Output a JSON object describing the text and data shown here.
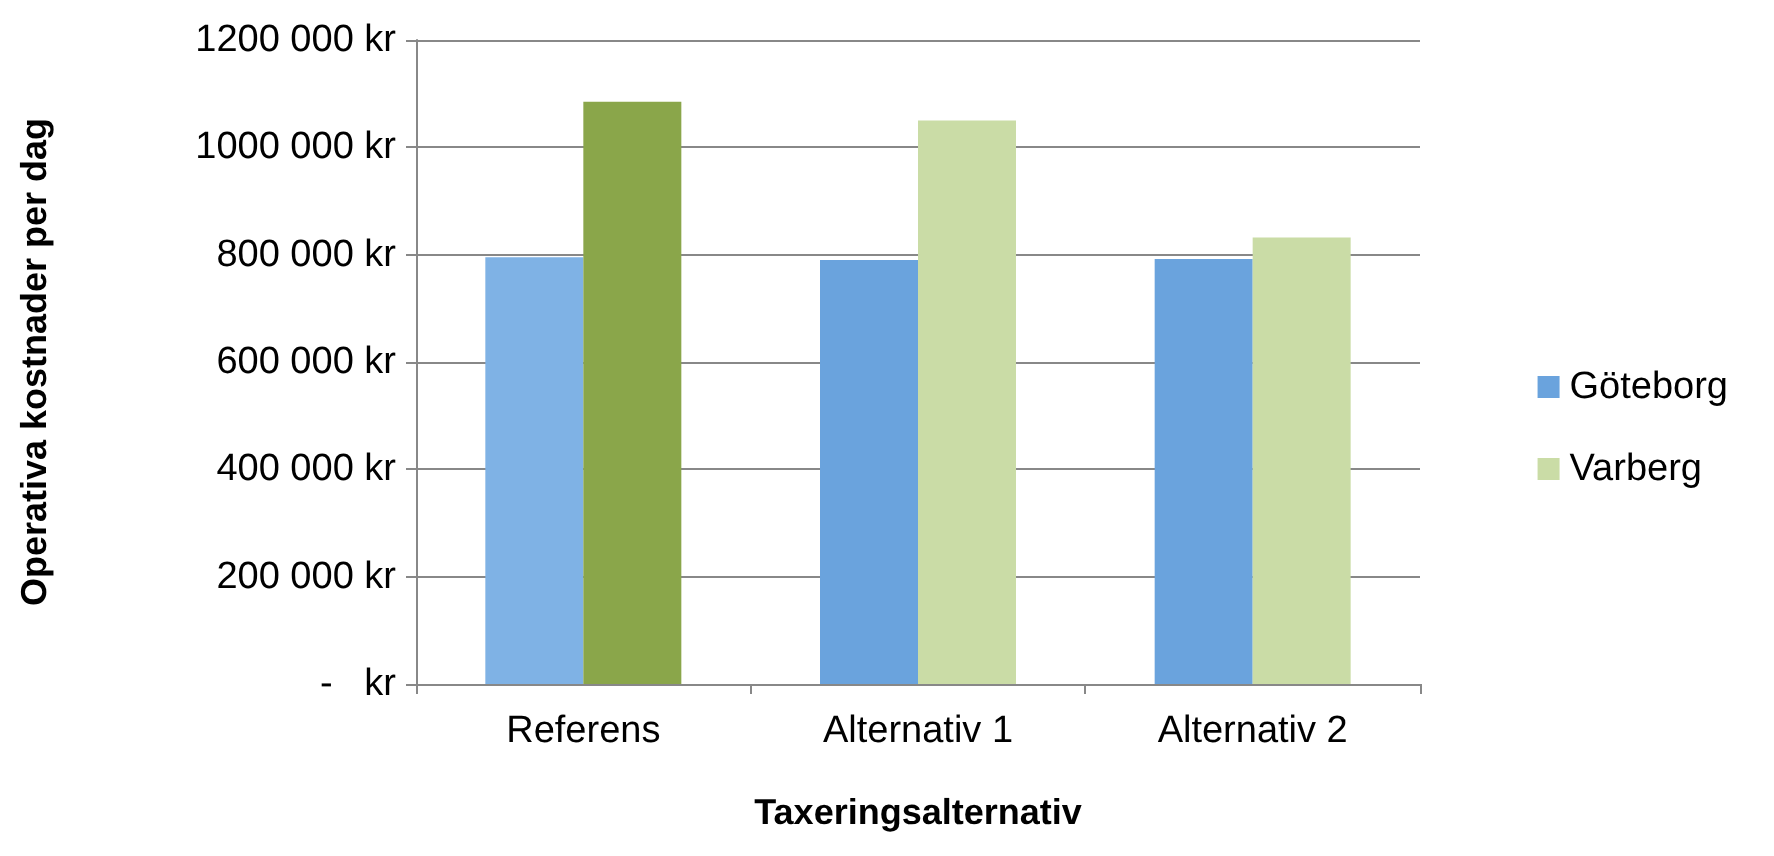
{
  "chart_data": {
    "type": "bar",
    "xlabel": "Taxeringsalternativ",
    "ylabel": "Operativa kostnader per dag",
    "categories": [
      "Referens",
      "Alternativ 1",
      "Alternativ 2"
    ],
    "series": [
      {
        "name": "Göteborg",
        "color": "#6aa3dd",
        "colors": [
          "#7fb2e5",
          "#6aa3dd",
          "#6aa3dd"
        ],
        "values": [
          795000,
          790000,
          792000
        ]
      },
      {
        "name": "Varberg",
        "color": "#cadca6",
        "colors": [
          "#8aa64a",
          "#cadca6",
          "#cadca6"
        ],
        "values": [
          1085000,
          1050000,
          832000
        ]
      }
    ],
    "ylim": [
      0,
      1200000
    ],
    "yticks": [
      {
        "value": 0,
        "label": "-   kr"
      },
      {
        "value": 200000,
        "label": "200 000 kr"
      },
      {
        "value": 400000,
        "label": "400 000 kr"
      },
      {
        "value": 600000,
        "label": "600 000 kr"
      },
      {
        "value": 800000,
        "label": "800 000 kr"
      },
      {
        "value": 1000000,
        "label": "1000 000 kr"
      },
      {
        "value": 1200000,
        "label": "1200 000 kr"
      }
    ],
    "grid": "y",
    "legend": "right"
  }
}
